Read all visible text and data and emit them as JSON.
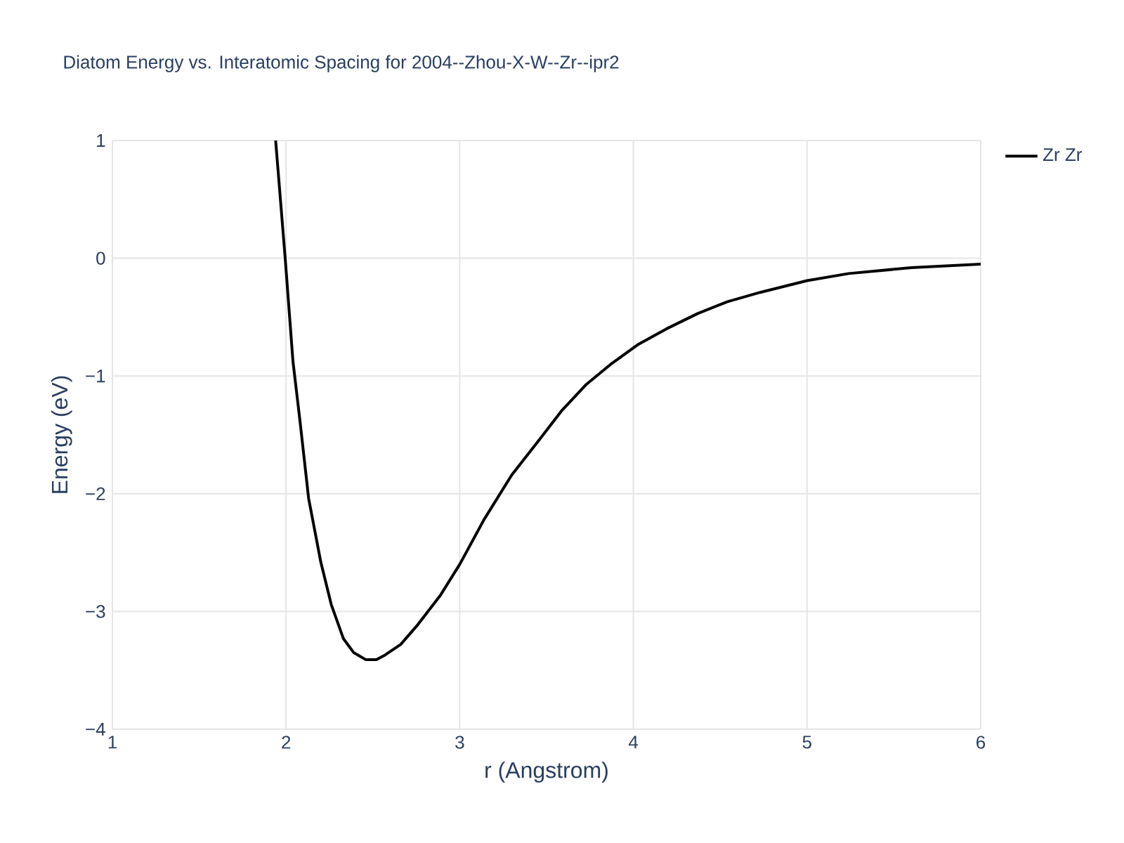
{
  "chart_data": {
    "type": "line",
    "title": "Diatom Energy vs. Interatomic Spacing for 2004--Zhou-X-W--Zr--ipr2",
    "xlabel": "r (Angstrom)",
    "ylabel": "Energy (eV)",
    "xlim": [
      1,
      6
    ],
    "ylim": [
      -4,
      1
    ],
    "xticks": [
      1,
      2,
      3,
      4,
      5,
      6
    ],
    "yticks": [
      {
        "value": -4,
        "label": "−4"
      },
      {
        "value": -3,
        "label": "−3"
      },
      {
        "value": -2,
        "label": "−2"
      },
      {
        "value": -1,
        "label": "−1"
      },
      {
        "value": 0,
        "label": "0"
      },
      {
        "value": 1,
        "label": "1"
      }
    ],
    "grid": true,
    "legend": "top right",
    "marker": "none",
    "line_style": "solid",
    "series": [
      {
        "name": "Zr Zr",
        "color": "#000000",
        "x": [
          1.94,
          1.995,
          2.04,
          2.08,
          2.13,
          2.2,
          2.26,
          2.33,
          2.39,
          2.46,
          2.52,
          2.57,
          2.66,
          2.76,
          2.89,
          3.0,
          3.14,
          3.3,
          3.47,
          3.59,
          3.73,
          3.87,
          4.03,
          4.19,
          4.37,
          4.54,
          4.73,
          5.0,
          5.24,
          5.6,
          6.0
        ],
        "values": [
          1.0,
          0.0,
          -0.88,
          -1.38,
          -2.04,
          -2.58,
          -2.94,
          -3.23,
          -3.35,
          -3.41,
          -3.41,
          -3.37,
          -3.28,
          -3.11,
          -2.86,
          -2.6,
          -2.22,
          -1.84,
          -1.52,
          -1.29,
          -1.07,
          -0.9,
          -0.73,
          -0.6,
          -0.47,
          -0.37,
          -0.29,
          -0.19,
          -0.13,
          -0.08,
          -0.05
        ]
      }
    ]
  }
}
